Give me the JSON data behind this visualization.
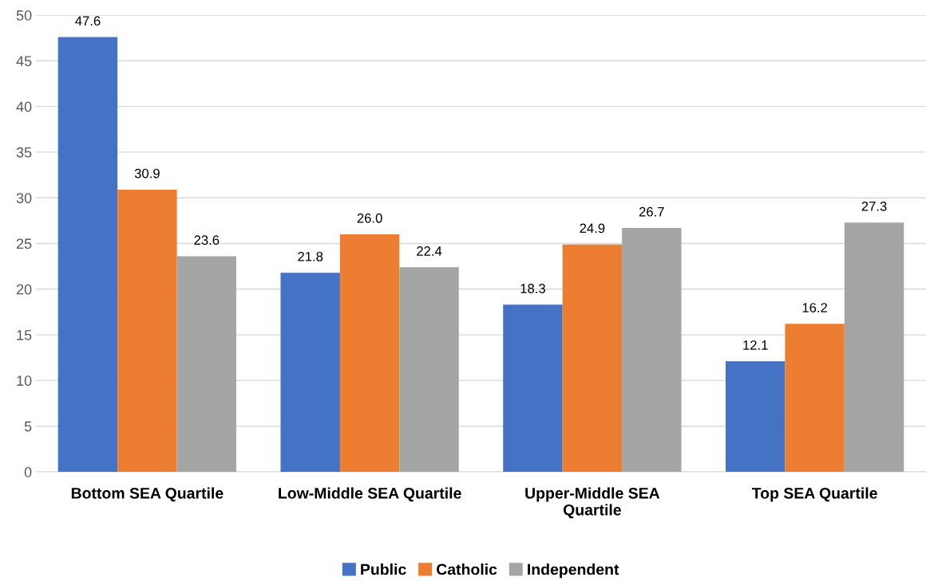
{
  "chart_data": {
    "type": "bar",
    "categories": [
      "Bottom SEA Quartile",
      "Low-Middle SEA Quartile",
      "Upper-Middle SEA Quartile",
      "Top SEA Quartile"
    ],
    "series": [
      {
        "name": "Public",
        "color": "#4472c4",
        "values": [
          47.6,
          21.8,
          18.3,
          12.1
        ],
        "value_labels": [
          "47.6",
          "21.8",
          "18.3",
          "12.1"
        ]
      },
      {
        "name": "Catholic",
        "color": "#ed7d31",
        "values": [
          30.9,
          26.0,
          24.9,
          16.2
        ],
        "value_labels": [
          "30.9",
          "26.0",
          "24.9",
          "16.2"
        ]
      },
      {
        "name": "Independent",
        "color": "#a5a5a5",
        "values": [
          23.6,
          22.4,
          26.7,
          27.3
        ],
        "value_labels": [
          "23.6",
          "22.4",
          "26.7",
          "27.3"
        ]
      }
    ],
    "ylim": [
      0,
      50
    ],
    "yticks": [
      0,
      5,
      10,
      15,
      20,
      25,
      30,
      35,
      40,
      45,
      50
    ],
    "grid": "y",
    "legend": "bottom"
  }
}
